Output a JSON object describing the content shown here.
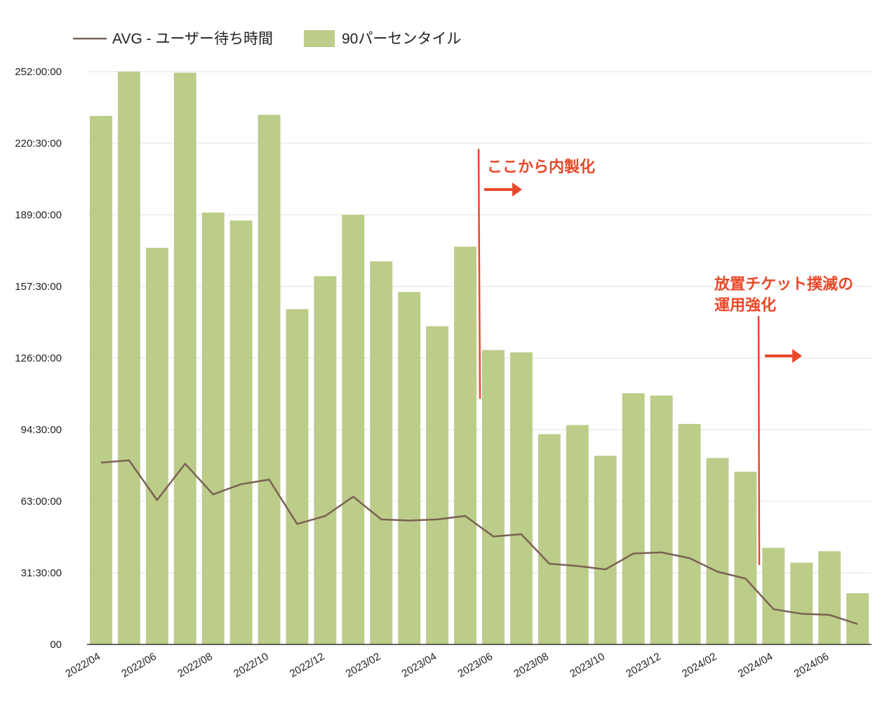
{
  "chart_data": {
    "type": "bar",
    "title": "",
    "xlabel": "",
    "ylabel": "",
    "ylim_hours": [
      0,
      252
    ],
    "y_ticks": [
      {
        "hours": 0,
        "label": "00"
      },
      {
        "hours": 31.5,
        "label": "31:30:00"
      },
      {
        "hours": 63,
        "label": "63:00:00"
      },
      {
        "hours": 94.5,
        "label": "94:30:00"
      },
      {
        "hours": 126,
        "label": "126:00:00"
      },
      {
        "hours": 157.5,
        "label": "157:30:00"
      },
      {
        "hours": 189,
        "label": "189:00:00"
      },
      {
        "hours": 220.5,
        "label": "220:30:00"
      },
      {
        "hours": 252,
        "label": "252:00:00"
      }
    ],
    "categories": [
      "2022/04",
      "2022/05",
      "2022/06",
      "2022/07",
      "2022/08",
      "2022/09",
      "2022/10",
      "2022/11",
      "2022/12",
      "2023/01",
      "2023/02",
      "2023/03",
      "2023/04",
      "2023/05",
      "2023/06",
      "2023/07",
      "2023/08",
      "2023/09",
      "2023/10",
      "2023/11",
      "2023/12",
      "2024/01",
      "2024/02",
      "2024/03",
      "2024/04",
      "2024/05",
      "2024/06",
      "2024/07"
    ],
    "x_tick_labels": [
      "2022/04",
      "2022/06",
      "2022/08",
      "2022/10",
      "2022/12",
      "2023/02",
      "2023/04",
      "2023/06",
      "2023/08",
      "2023/10",
      "2023/12",
      "2024/02",
      "2024/04",
      "2024/06"
    ],
    "series": [
      {
        "name": "90パーセンタイル",
        "kind": "bar",
        "color": "#bccc89",
        "values": [
          232.5,
          252,
          174.5,
          251.5,
          190,
          186.5,
          233,
          147.5,
          162,
          189,
          168.5,
          155,
          140,
          175,
          129.5,
          128.5,
          92.5,
          96.5,
          83,
          110.5,
          109.5,
          97,
          82,
          76,
          42.5,
          36,
          41,
          22.5
        ]
      },
      {
        "name": "AVG - ユーザー待ち時間",
        "kind": "line",
        "color": "#7a6253",
        "values": [
          80,
          81,
          63.5,
          79.5,
          66,
          70.5,
          72.5,
          53,
          56.5,
          65,
          55,
          54.5,
          55,
          56.5,
          47.5,
          48.5,
          35.5,
          34.5,
          33,
          40,
          40.5,
          38,
          32,
          29,
          15.5,
          13.5,
          13,
          9
        ]
      }
    ],
    "legend_position": "top-left",
    "grid": true,
    "annotations": [
      {
        "text": "ここから内製化",
        "color": "#e8492a",
        "category": "2023/06"
      },
      {
        "text": "放置チケット撲滅の\n運用強化",
        "color": "#e8492a",
        "category": "2024/04"
      }
    ]
  }
}
